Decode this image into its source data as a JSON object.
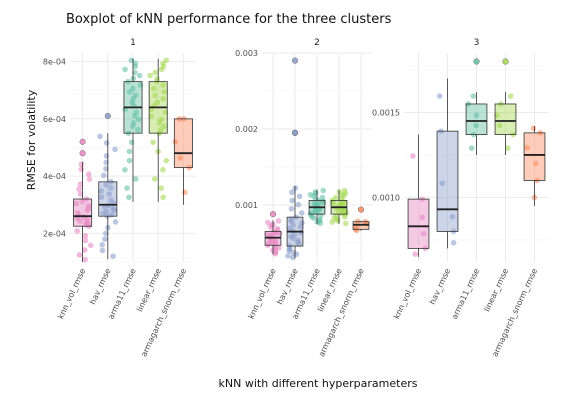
{
  "chart_data": {
    "type": "boxplot",
    "title": "Boxplot of kNN performance for the three clusters",
    "xlabel": "kNN with different hyperparameters",
    "ylabel": "RMSE for volatility",
    "categories": [
      "knn_vol_rmse",
      "hav_rmse",
      "arma11_rmse",
      "linear_rmse",
      "armagarch_snorm_rmse"
    ],
    "category_colors": [
      "#e78ac3",
      "#8da0cb",
      "#66c2a5",
      "#a6d854",
      "#fc8d62"
    ],
    "panels": [
      {
        "label": "1",
        "ylim": [
          0.0001,
          0.00083
        ],
        "y_ticks": [
          0.0002,
          0.0004,
          0.0006,
          0.0008
        ],
        "y_tick_labels": [
          "2e-04",
          "4e-04",
          "6e-04",
          "8e-04"
        ],
        "boxes": [
          {
            "category": "knn_vol_rmse",
            "min": 0.0001,
            "q1": 0.000225,
            "median": 0.00026,
            "q3": 0.00032,
            "max": 0.00045,
            "outliers": [
              0.00048,
              0.00052
            ],
            "n_points": 30
          },
          {
            "category": "hav_rmse",
            "min": 0.00011,
            "q1": 0.00026,
            "median": 0.0003,
            "q3": 0.00038,
            "max": 0.00055,
            "outliers": [
              0.00061
            ],
            "n_points": 30
          },
          {
            "category": "arma11_rmse",
            "min": 0.00031,
            "q1": 0.00055,
            "median": 0.00064,
            "q3": 0.00073,
            "max": 0.00081,
            "outliers": [],
            "n_points": 30
          },
          {
            "category": "linear_rmse",
            "min": 0.00031,
            "q1": 0.00055,
            "median": 0.00064,
            "q3": 0.00073,
            "max": 0.00081,
            "outliers": [],
            "n_points": 30
          },
          {
            "category": "armagarch_snorm_rmse",
            "min": 0.0003,
            "q1": 0.00043,
            "median": 0.00048,
            "q3": 0.0006,
            "max": 0.0006,
            "outliers": [],
            "n_points": 6
          }
        ]
      },
      {
        "label": "2",
        "ylim": [
          0.00025,
          0.003
        ],
        "y_ticks": [
          0.001,
          0.002,
          0.003
        ],
        "y_tick_labels": [
          "0.001",
          "0.002",
          "0.003"
        ],
        "boxes": [
          {
            "category": "knn_vol_rmse",
            "min": 0.00035,
            "q1": 0.00047,
            "median": 0.00057,
            "q3": 0.00065,
            "max": 0.0008,
            "outliers": [
              0.00088
            ],
            "n_points": 30
          },
          {
            "category": "hav_rmse",
            "min": 0.0003,
            "q1": 0.00046,
            "median": 0.00065,
            "q3": 0.00084,
            "max": 0.00125,
            "outliers": [
              0.00195,
              0.00195,
              0.0029
            ],
            "n_points": 30
          },
          {
            "category": "arma11_rmse",
            "min": 0.00075,
            "q1": 0.00088,
            "median": 0.00097,
            "q3": 0.00106,
            "max": 0.0012,
            "outliers": [],
            "n_points": 30
          },
          {
            "category": "linear_rmse",
            "min": 0.00075,
            "q1": 0.00088,
            "median": 0.00097,
            "q3": 0.00106,
            "max": 0.0012,
            "outliers": [],
            "n_points": 30
          },
          {
            "category": "armagarch_snorm_rmse",
            "min": 0.00066,
            "q1": 0.00068,
            "median": 0.00074,
            "q3": 0.00078,
            "max": 0.00079,
            "outliers": [
              0.00094
            ],
            "n_points": 6
          }
        ]
      },
      {
        "label": "3",
        "ylim": [
          0.00062,
          0.00185
        ],
        "y_ticks": [
          0.001,
          0.0015
        ],
        "y_tick_labels": [
          "0.0010",
          "0.0015"
        ],
        "boxes": [
          {
            "category": "knn_vol_rmse",
            "min": 0.00065,
            "q1": 0.0007,
            "median": 0.00083,
            "q3": 0.00099,
            "max": 0.00137,
            "outliers": [],
            "n_points": 6
          },
          {
            "category": "hav_rmse",
            "min": 0.0007,
            "q1": 0.0008,
            "median": 0.00093,
            "q3": 0.00139,
            "max": 0.0017,
            "outliers": [],
            "n_points": 6
          },
          {
            "category": "arma11_rmse",
            "min": 0.00125,
            "q1": 0.00137,
            "median": 0.00145,
            "q3": 0.00155,
            "max": 0.00162,
            "outliers": [
              0.0018
            ],
            "n_points": 6
          },
          {
            "category": "linear_rmse",
            "min": 0.00125,
            "q1": 0.00137,
            "median": 0.00145,
            "q3": 0.00155,
            "max": 0.00162,
            "outliers": [
              0.0018
            ],
            "n_points": 6
          },
          {
            "category": "armagarch_snorm_rmse",
            "min": 0.00095,
            "q1": 0.0011,
            "median": 0.00125,
            "q3": 0.00138,
            "max": 0.00142,
            "outliers": [],
            "n_points": 6
          }
        ]
      }
    ],
    "grid": true,
    "legend": "none"
  }
}
